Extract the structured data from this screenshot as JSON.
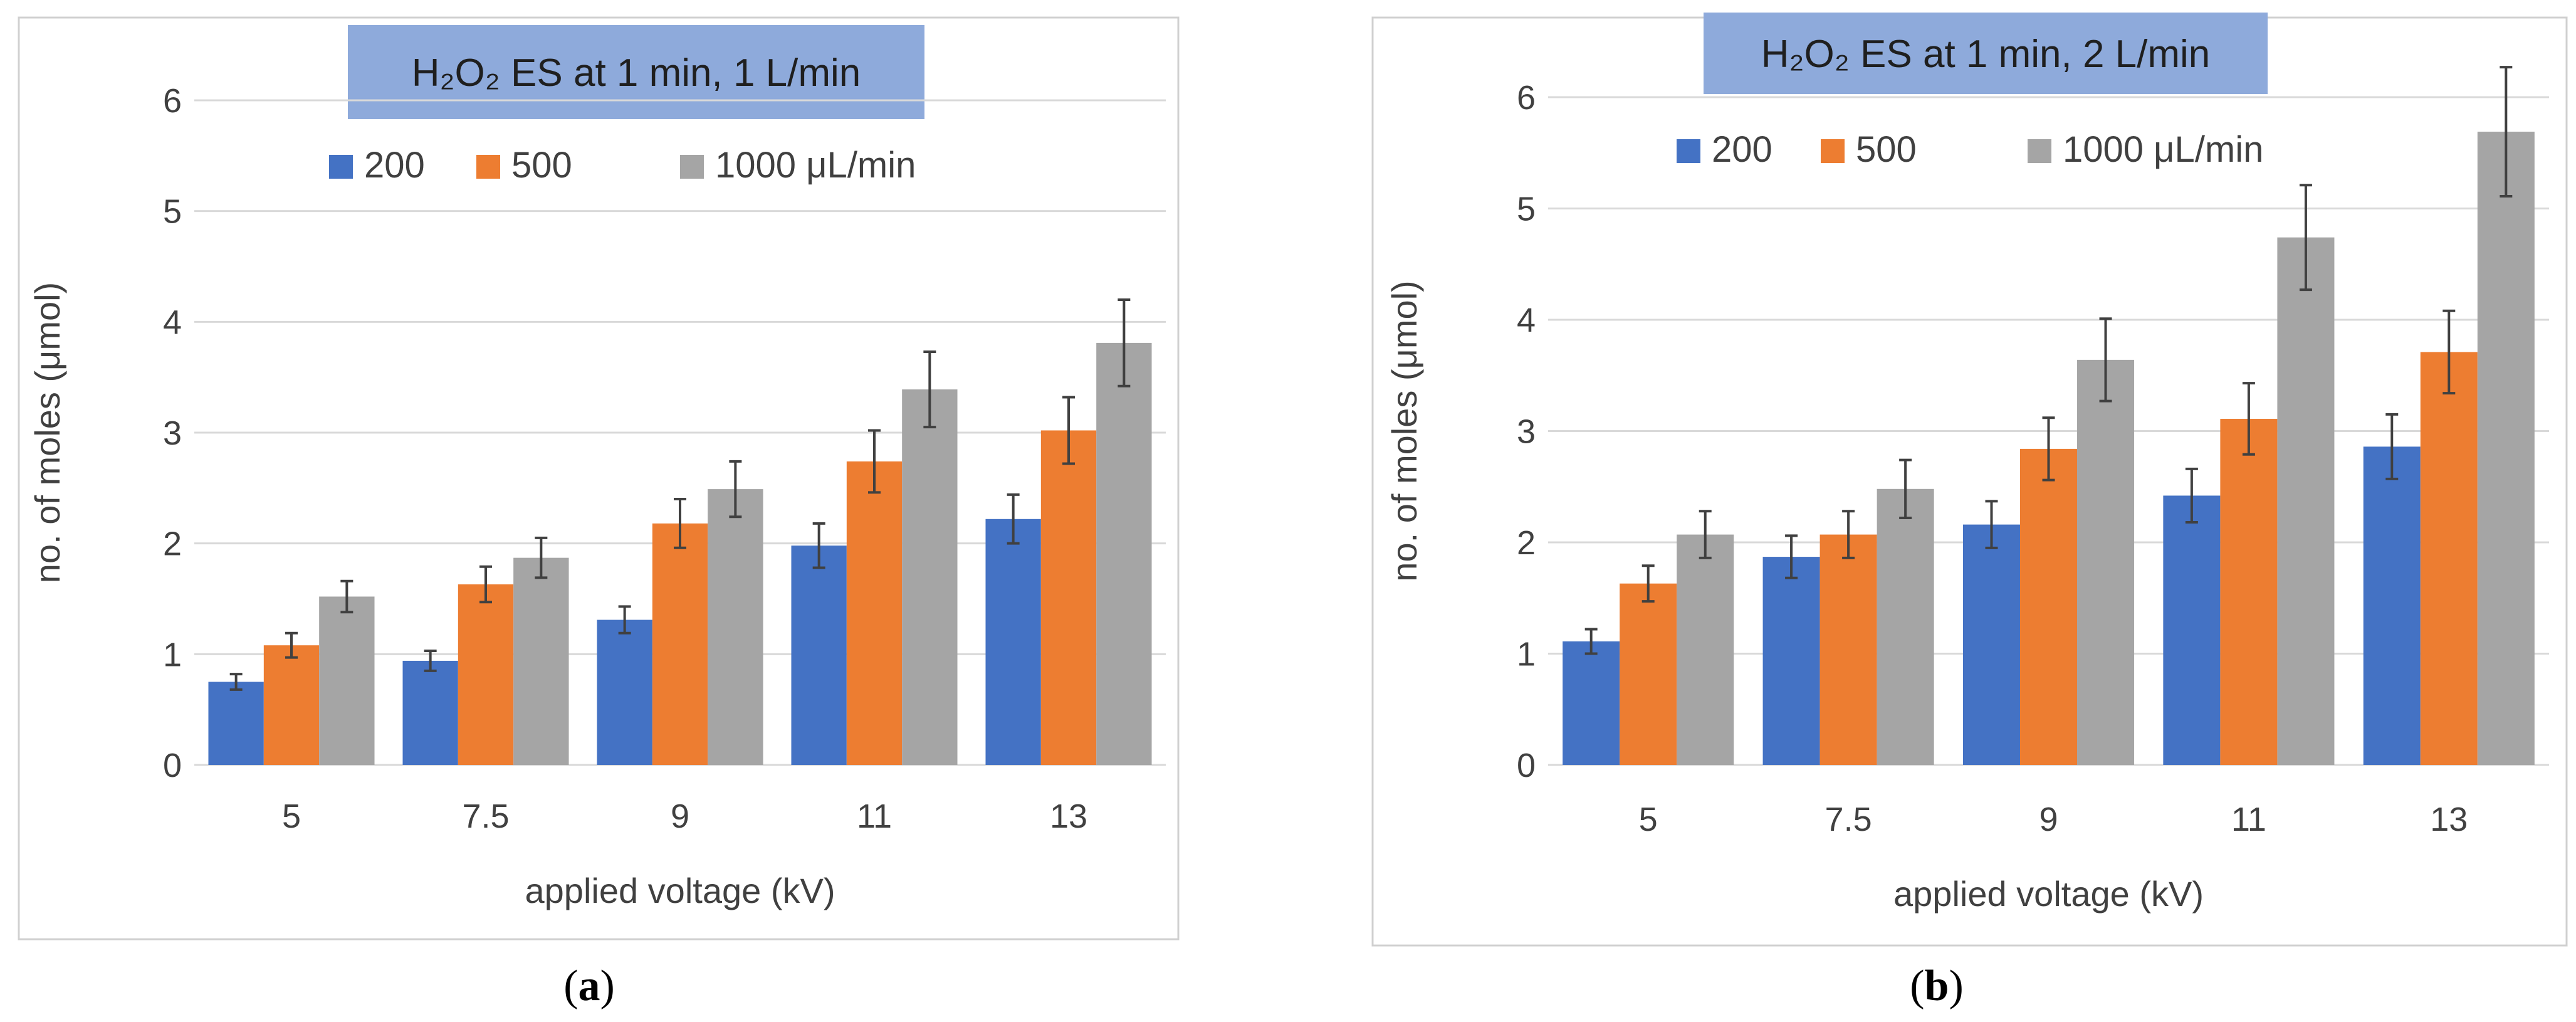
{
  "chart_data": [
    {
      "type": "bar",
      "panel_label": "a",
      "title": "H₂O₂ ES at 1 min, 1 L/min",
      "xlabel": "applied voltage (kV)",
      "ylabel": "no. of moles (μmol)",
      "ylim": [
        0,
        6
      ],
      "yticks": [
        "0",
        "1",
        "2",
        "3",
        "4",
        "5",
        "6"
      ],
      "categories": [
        "5",
        "7.5",
        "9",
        "11",
        "13"
      ],
      "legend": {
        "placement": "top-center",
        "labels": [
          "200",
          "500",
          "1000 μL/min"
        ]
      },
      "colors": [
        "#4472c4",
        "#ed7d31",
        "#a5a5a5"
      ],
      "series": [
        {
          "name": "200",
          "values": [
            0.75,
            0.94,
            1.31,
            1.98,
            2.22
          ],
          "errors": [
            0.07,
            0.09,
            0.12,
            0.2,
            0.22
          ]
        },
        {
          "name": "500",
          "values": [
            1.08,
            1.63,
            2.18,
            2.74,
            3.02
          ],
          "errors": [
            0.11,
            0.16,
            0.22,
            0.28,
            0.3
          ]
        },
        {
          "name": "1000 μL/min",
          "values": [
            1.52,
            1.87,
            2.49,
            3.39,
            3.81
          ],
          "errors": [
            0.14,
            0.18,
            0.25,
            0.34,
            0.39
          ]
        }
      ]
    },
    {
      "type": "bar",
      "panel_label": "b",
      "title": "H₂O₂ ES at 1 min, 2 L/min",
      "xlabel": "applied voltage (kV)",
      "ylabel": "no. of moles (μmol)",
      "ylim": [
        0,
        6
      ],
      "yticks": [
        "0",
        "1",
        "2",
        "3",
        "4",
        "5",
        "6"
      ],
      "categories": [
        "5",
        "7.5",
        "9",
        "11",
        "13"
      ],
      "legend": {
        "placement": "top-center",
        "labels": [
          "200",
          "500",
          "1000 μL/min"
        ]
      },
      "colors": [
        "#4472c4",
        "#ed7d31",
        "#a5a5a5"
      ],
      "series": [
        {
          "name": "200",
          "values": [
            1.11,
            1.87,
            2.16,
            2.42,
            2.86
          ],
          "errors": [
            0.11,
            0.19,
            0.21,
            0.24,
            0.29
          ]
        },
        {
          "name": "500",
          "values": [
            1.63,
            2.07,
            2.84,
            3.11,
            3.71
          ],
          "errors": [
            0.16,
            0.21,
            0.28,
            0.32,
            0.37
          ]
        },
        {
          "name": "1000 μL/min",
          "values": [
            2.07,
            2.48,
            3.64,
            4.74,
            5.69
          ],
          "errors": [
            0.21,
            0.26,
            0.37,
            0.47,
            0.58
          ]
        }
      ]
    }
  ]
}
